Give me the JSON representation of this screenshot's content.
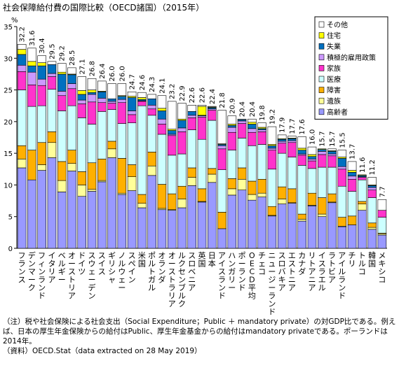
{
  "chart_data": {
    "type": "stacked-bar",
    "title": "社会保障給付費の国際比較（OECD諸国）（2015年）",
    "ylabel": "%",
    "ylim": [
      0,
      35
    ],
    "yticks": [
      0,
      5,
      10,
      15,
      20,
      25,
      30,
      35
    ],
    "legend_position": "top-right",
    "categories": [
      "フランス",
      "デンマーク",
      "フィンランド",
      "イタリア",
      "ベルギー",
      "オーストリア",
      "ドイツ",
      "スウェーデン",
      "スイス",
      "ギリシャ",
      "ノルウェー",
      "スペイン",
      "米国",
      "ポルトガル",
      "オランダ",
      "オーストラリア",
      "ルクセンブルク",
      "スロベニア",
      "英国",
      "日本",
      "アイスランド",
      "ハンガリー",
      "ポーランド",
      "OECD平均",
      "チェコ",
      "ニュージーランド",
      "スロバキア",
      "エストニア",
      "カナダ",
      "リトアニア",
      "イスラエル",
      "ラトビア",
      "アイルランド",
      "チリ",
      "トルコ",
      "韓国",
      "メキシコ"
    ],
    "totals_label": [
      "32.2",
      "31.6",
      "30.4",
      "29.5",
      "29.2",
      "28.5",
      "27.1",
      "26.8",
      "26.4",
      "26.0",
      "26.0",
      "24.7",
      "24.6",
      "24.3",
      "24.1",
      "23.2",
      "22.9",
      "22.6",
      "22.6",
      "22.4",
      "21.8",
      "20.9",
      "20.4",
      "20.4",
      "19.8",
      "19.2",
      "17.9",
      "17.7",
      "17.6",
      "16.0",
      "15.7",
      "15.7",
      "15.5",
      "13.7",
      "11.6",
      "11.2",
      "7.7"
    ],
    "series": [
      {
        "name": "高齢者",
        "color": "#9999FF",
        "values": [
          12.7,
          10.8,
          12.3,
          14.3,
          8.9,
          12.2,
          8.2,
          9.0,
          10.5,
          14.3,
          8.5,
          9.1,
          6.4,
          11.5,
          6.1,
          6.0,
          6.4,
          9.9,
          7.3,
          10.4,
          3.1,
          8.4,
          9.2,
          7.6,
          8.1,
          5.1,
          7.0,
          7.1,
          4.3,
          6.7,
          5.0,
          7.2,
          3.4,
          3.7,
          6.0,
          3.0,
          2.1
        ]
      },
      {
        "name": "遺族",
        "color": "#FFFF99",
        "values": [
          1.4,
          0.0,
          0.9,
          2.4,
          1.8,
          1.2,
          1.8,
          0.3,
          0.2,
          1.4,
          0.2,
          2.2,
          0.7,
          1.5,
          0.2,
          0.1,
          1.4,
          1.3,
          0.1,
          1.3,
          0.0,
          1.0,
          1.7,
          0.9,
          0.6,
          0.1,
          0.8,
          0.1,
          0.3,
          0.1,
          0.4,
          0.1,
          0.1,
          0.0,
          1.0,
          0.3,
          0.2
        ]
      },
      {
        "name": "障害",
        "color": "#FFB000",
        "values": [
          2.1,
          4.7,
          3.5,
          1.7,
          3.0,
          2.1,
          2.1,
          4.2,
          3.4,
          1.2,
          5.5,
          1.9,
          1.4,
          2.2,
          3.8,
          2.5,
          2.0,
          1.5,
          2.0,
          0.9,
          2.6,
          1.6,
          1.8,
          2.1,
          2.2,
          1.4,
          1.9,
          2.2,
          0.8,
          1.9,
          2.6,
          1.3,
          1.4,
          1.4,
          0.4,
          0.7,
          0.1
        ]
      },
      {
        "name": "医療",
        "color": "#CCFFFF",
        "values": [
          8.8,
          6.9,
          5.8,
          6.7,
          8.0,
          7.0,
          8.5,
          6.1,
          7.5,
          5.0,
          5.5,
          6.6,
          14.0,
          5.8,
          7.9,
          6.1,
          5.1,
          6.0,
          7.8,
          7.6,
          6.7,
          4.5,
          4.7,
          5.6,
          5.5,
          5.9,
          5.3,
          5.0,
          7.7,
          3.9,
          4.8,
          4.2,
          4.9,
          3.9,
          3.4,
          4.0,
          2.5
        ]
      },
      {
        "name": "家族",
        "color": "#FF33CC",
        "values": [
          2.9,
          3.4,
          3.2,
          2.0,
          2.4,
          2.7,
          2.2,
          3.5,
          1.4,
          1.0,
          3.3,
          1.3,
          0.7,
          1.0,
          1.6,
          3.1,
          3.5,
          1.9,
          3.5,
          1.6,
          3.3,
          2.8,
          2.3,
          2.1,
          2.0,
          3.0,
          1.6,
          2.3,
          1.6,
          1.2,
          2.0,
          1.8,
          2.7,
          1.9,
          0.4,
          1.2,
          1.1
        ]
      },
      {
        "name": "積極的雇用政策",
        "color": "#CC99FF",
        "values": [
          1.0,
          2.0,
          1.0,
          0.5,
          0.7,
          0.8,
          0.6,
          1.2,
          0.7,
          0.3,
          0.5,
          0.6,
          0.1,
          0.6,
          0.8,
          0.2,
          0.6,
          0.4,
          0.2,
          0.2,
          0.5,
          0.8,
          0.4,
          0.6,
          0.3,
          0.3,
          0.3,
          0.3,
          0.2,
          0.3,
          0.5,
          0.3,
          0.4,
          0.5,
          0.1,
          0.4,
          0.0
        ]
      },
      {
        "name": "失業",
        "color": "#0070C0",
        "values": [
          1.7,
          1.0,
          2.1,
          1.4,
          2.7,
          1.4,
          0.9,
          0.3,
          1.0,
          0.4,
          0.5,
          2.1,
          0.2,
          1.0,
          1.3,
          0.6,
          1.2,
          0.6,
          0.1,
          0.2,
          0.2,
          0.3,
          0.2,
          0.7,
          0.2,
          0.4,
          0.3,
          0.3,
          0.6,
          0.4,
          0.3,
          0.4,
          1.3,
          0.6,
          0.2,
          0.3,
          0.0
        ]
      },
      {
        "name": "住宅",
        "color": "#FFFF00",
        "values": [
          0.8,
          0.7,
          0.5,
          0.0,
          0.3,
          0.1,
          0.6,
          0.4,
          0.1,
          0.0,
          0.1,
          0.2,
          0.3,
          0.0,
          0.4,
          0.2,
          0.2,
          0.0,
          1.4,
          0.1,
          0.1,
          0.2,
          0.0,
          0.3,
          0.2,
          0.2,
          0.1,
          0.1,
          0.3,
          0.3,
          0.1,
          0.1,
          0.2,
          0.3,
          0.1,
          0.1,
          0.0
        ]
      },
      {
        "name": "その他",
        "color": "#FFFFFF",
        "values": [
          0.8,
          2.1,
          1.1,
          0.5,
          1.4,
          1.0,
          2.2,
          1.8,
          1.6,
          2.4,
          1.9,
          0.7,
          0.8,
          0.7,
          2.0,
          4.4,
          2.5,
          1.0,
          0.2,
          0.1,
          5.3,
          1.3,
          0.1,
          0.5,
          0.7,
          2.8,
          0.6,
          0.3,
          1.8,
          1.2,
          0.0,
          0.3,
          1.1,
          1.4,
          0.0,
          1.2,
          1.7
        ]
      }
    ]
  },
  "notes": [
    "（注）税や社会保険による社会支出（Social Expenditure；Public ＋ mandatory private）の対GDP比である。例えば、日本の厚生年金保険からの給付はPublic、厚生年金基金からの給付はmandatory privateである。ポーランドは2014年。",
    "（資料）OECD.Stat（data extracted on 28 May 2019）"
  ]
}
